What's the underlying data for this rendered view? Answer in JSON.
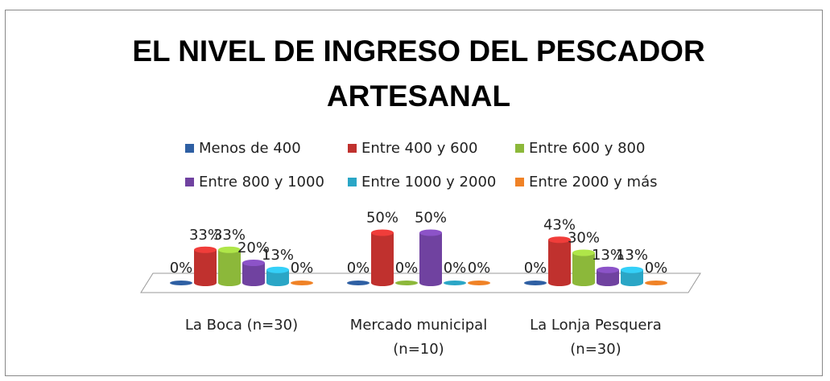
{
  "chart_data": {
    "type": "bar",
    "title": "EL NIVEL DE INGRESO DEL PESCADOR ARTESANAL",
    "categories": [
      "La Boca (n=30)",
      "Mercado municipal (n=10)",
      "La Lonja Pesquera (n=30)"
    ],
    "series": [
      {
        "name": "Menos de 400",
        "color": "#2e5fa3",
        "values": [
          0,
          0,
          0
        ],
        "value_labels": [
          "0%",
          "0%",
          "0%"
        ]
      },
      {
        "name": "Entre 400 y 600",
        "color": "#c0312e",
        "values": [
          33,
          50,
          43
        ],
        "value_labels": [
          "33%",
          "50%",
          "43%"
        ]
      },
      {
        "name": "Entre 600 y 800",
        "color": "#8cb83a",
        "values": [
          33,
          0,
          30
        ],
        "value_labels": [
          "33%",
          "0%",
          "30%"
        ]
      },
      {
        "name": "Entre 800 y 1000",
        "color": "#7042a0",
        "values": [
          20,
          50,
          13
        ],
        "value_labels": [
          "20%",
          "50%",
          "13%"
        ]
      },
      {
        "name": "Entre 1000 y 2000",
        "color": "#2aa6c6",
        "values": [
          13,
          0,
          13
        ],
        "value_labels": [
          "13%",
          "0%",
          "13%"
        ]
      },
      {
        "name": "Entre 2000 y más",
        "color": "#f08226",
        "values": [
          0,
          0,
          0
        ],
        "value_labels": [
          "0%",
          "0%",
          "0%"
        ]
      }
    ]
  }
}
